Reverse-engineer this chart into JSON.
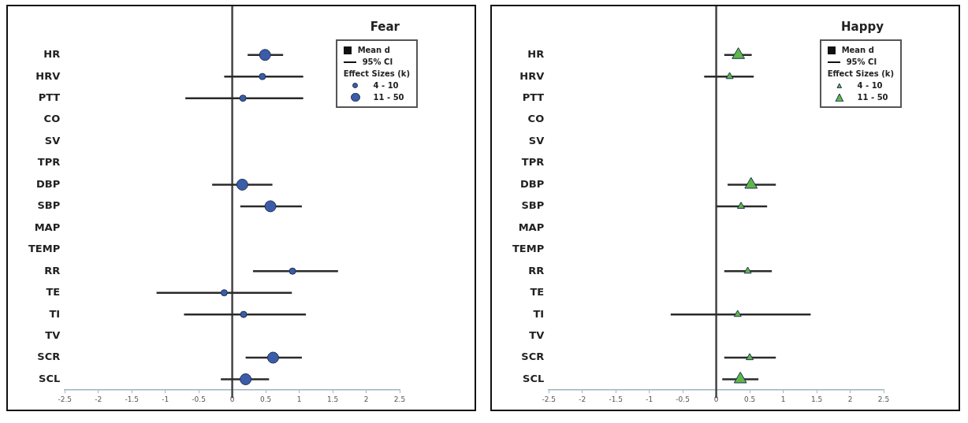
{
  "chart_data": [
    {
      "type": "scatter",
      "title": "Fear",
      "orientation": "horizontal",
      "marker": "circle",
      "legend": "top right",
      "legend_title": "Effect Sizes (k)",
      "grid": false,
      "categories": [
        "HR",
        "HRV",
        "PTT",
        "CO",
        "SV",
        "TPR",
        "DBP",
        "SBP",
        "MAP",
        "TEMP",
        "RR",
        "TE",
        "TI",
        "TV",
        "SCR",
        "SCL"
      ],
      "series": [
        {
          "name": "4 - 10",
          "color": "#3b5ca8",
          "values": [
            null,
            0.45,
            0.16,
            null,
            null,
            null,
            null,
            null,
            null,
            null,
            0.9,
            -0.12,
            0.17,
            null,
            null,
            null
          ],
          "errors": [
            null,
            [
              -0.12,
              1.06
            ],
            [
              -0.7,
              1.06
            ],
            null,
            null,
            null,
            null,
            null,
            null,
            null,
            [
              0.31,
              1.58
            ],
            [
              -1.13,
              0.89
            ],
            [
              -0.72,
              1.1
            ],
            null,
            null,
            null
          ]
        },
        {
          "name": "11 - 50",
          "color": "#3b5ca8",
          "values": [
            0.49,
            null,
            null,
            null,
            null,
            null,
            0.15,
            0.57,
            null,
            null,
            null,
            null,
            null,
            null,
            0.61,
            0.2
          ],
          "errors": [
            [
              0.23,
              0.76
            ],
            null,
            null,
            null,
            null,
            null,
            [
              -0.3,
              0.6
            ],
            [
              0.12,
              1.04
            ],
            null,
            null,
            null,
            null,
            null,
            null,
            [
              0.2,
              1.04
            ],
            [
              -0.17,
              0.55
            ]
          ]
        }
      ],
      "xlim": [
        -2.5,
        2.5
      ],
      "xticks": [
        -2.5,
        -2,
        -1.5,
        -1,
        -0.5,
        0,
        0.5,
        1,
        1.5,
        2,
        2.5
      ],
      "ref_lines": [
        {
          "axis": "x",
          "value": 0,
          "color": "#444444"
        }
      ],
      "annotations": [
        "Mean d",
        "95% CI"
      ]
    },
    {
      "type": "scatter",
      "title": "Happy",
      "orientation": "horizontal",
      "marker": "triangle",
      "legend": "top right",
      "legend_title": "Effect Sizes (k)",
      "grid": false,
      "categories": [
        "HR",
        "HRV",
        "PTT",
        "CO",
        "SV",
        "TPR",
        "DBP",
        "SBP",
        "MAP",
        "TEMP",
        "RR",
        "TE",
        "TI",
        "TV",
        "SCR",
        "SCL"
      ],
      "series": [
        {
          "name": "4 - 10",
          "color": "#5db847",
          "values": [
            null,
            0.2,
            null,
            null,
            null,
            null,
            null,
            0.37,
            null,
            null,
            0.47,
            null,
            0.32,
            null,
            0.5,
            null
          ],
          "errors": [
            null,
            [
              -0.18,
              0.56
            ],
            null,
            null,
            null,
            null,
            null,
            [
              0.0,
              0.76
            ],
            null,
            null,
            [
              0.12,
              0.83
            ],
            null,
            [
              -0.68,
              1.41
            ],
            null,
            [
              0.12,
              0.89
            ],
            null
          ]
        },
        {
          "name": "11 - 50",
          "color": "#5db847",
          "values": [
            0.33,
            null,
            null,
            null,
            null,
            null,
            0.52,
            null,
            null,
            null,
            null,
            null,
            null,
            null,
            null,
            0.36
          ],
          "errors": [
            [
              0.12,
              0.53
            ],
            null,
            null,
            null,
            null,
            null,
            [
              0.17,
              0.89
            ],
            null,
            null,
            null,
            null,
            null,
            null,
            null,
            null,
            [
              0.09,
              0.63
            ]
          ]
        }
      ],
      "xlim": [
        -2.5,
        2.5
      ],
      "xticks": [
        -2.5,
        -2,
        -1.5,
        -1,
        -0.5,
        0,
        0.5,
        1,
        1.5,
        2,
        2.5
      ],
      "ref_lines": [
        {
          "axis": "x",
          "value": 0,
          "color": "#444444"
        }
      ],
      "annotations": [
        "Mean d",
        "95% CI"
      ]
    }
  ]
}
